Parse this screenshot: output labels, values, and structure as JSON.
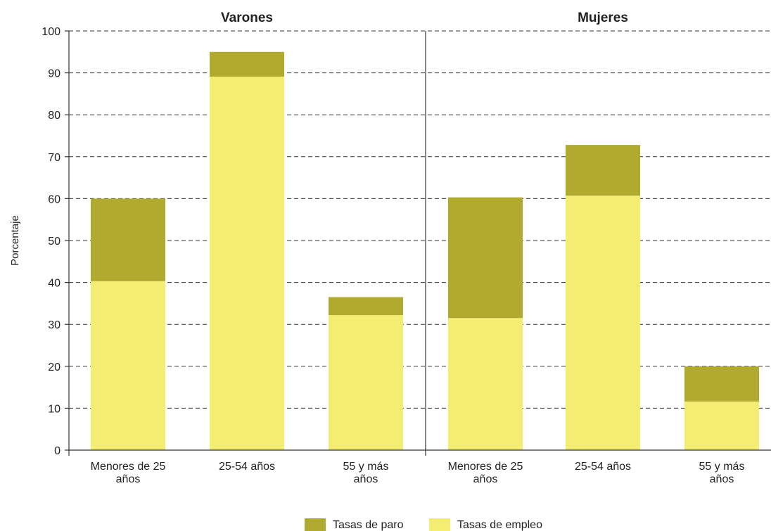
{
  "chart_data": {
    "type": "bar",
    "stacked": true,
    "ylabel": "Porcentaje",
    "ylim": [
      0,
      100
    ],
    "yticks": [
      0,
      10,
      20,
      30,
      40,
      50,
      60,
      70,
      80,
      90,
      100
    ],
    "grid": true,
    "legend_position": "bottom",
    "colors": {
      "paro": "#b0aa2e",
      "empleo": "#f3ee72"
    },
    "legend": [
      "Tasas de paro",
      "Tasas de empleo"
    ],
    "panels": [
      {
        "title": "Varones",
        "categories": [
          [
            "Menores de 25",
            "años"
          ],
          [
            "25-54 años"
          ],
          [
            "55 y más",
            "años"
          ]
        ],
        "series": [
          {
            "name": "Tasas de empleo",
            "values": [
              40.3,
              89.1,
              32.2
            ]
          },
          {
            "name": "Tasas de paro",
            "values": [
              19.7,
              5.9,
              4.3
            ]
          }
        ]
      },
      {
        "title": "Mujeres",
        "categories": [
          [
            "Menores de 25",
            "años"
          ],
          [
            "25-54 años"
          ],
          [
            "55 y más",
            "años"
          ]
        ],
        "series": [
          {
            "name": "Tasas de empleo",
            "values": [
              31.5,
              60.7,
              11.6
            ]
          },
          {
            "name": "Tasas de paro",
            "values": [
              28.8,
              12.1,
              8.4
            ]
          }
        ]
      }
    ]
  }
}
